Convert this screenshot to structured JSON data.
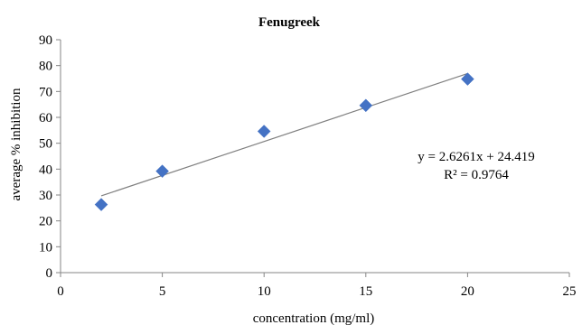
{
  "chart_data": {
    "type": "scatter",
    "title": "Fenugreek",
    "xlabel": "concentration (mg/ml)",
    "ylabel": "average % inhibition",
    "xlim": [
      0,
      25
    ],
    "ylim": [
      0,
      90
    ],
    "x_ticks": [
      0,
      5,
      10,
      15,
      20,
      25
    ],
    "y_ticks": [
      0,
      10,
      20,
      30,
      40,
      50,
      60,
      70,
      80,
      90
    ],
    "grid": false,
    "legend": "none",
    "marker": "diamond",
    "series": [
      {
        "x": [
          2,
          5,
          10,
          15,
          20
        ],
        "y": [
          26.3,
          39.2,
          54.6,
          64.6,
          74.8
        ],
        "color": "#4472C4"
      }
    ],
    "trendline": {
      "type": "linear",
      "slope": 2.6261,
      "intercept": 24.419,
      "x_range": [
        2,
        20
      ],
      "color": "#808080",
      "equation": "y = 2.6261x + 24.419",
      "r_squared": "R² = 0.9764"
    }
  }
}
